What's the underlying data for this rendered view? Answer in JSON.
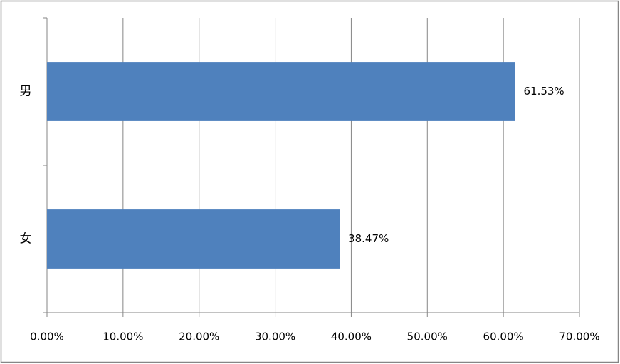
{
  "chart_data": {
    "type": "barh",
    "categories": [
      "男",
      "女"
    ],
    "values": [
      61.53,
      38.47
    ],
    "value_labels": [
      "61.53%",
      "38.47%"
    ],
    "color": "#4f81bd",
    "xlim": [
      0,
      70
    ],
    "xticks": [
      {
        "value": 0,
        "label": "0.00%"
      },
      {
        "value": 10,
        "label": "10.00%"
      },
      {
        "value": 20,
        "label": "20.00%"
      },
      {
        "value": 30,
        "label": "30.00%"
      },
      {
        "value": 40,
        "label": "40.00%"
      },
      {
        "value": 50,
        "label": "50.00%"
      },
      {
        "value": 60,
        "label": "60.00%"
      },
      {
        "value": 70,
        "label": "70.00%"
      }
    ],
    "grid": true
  }
}
